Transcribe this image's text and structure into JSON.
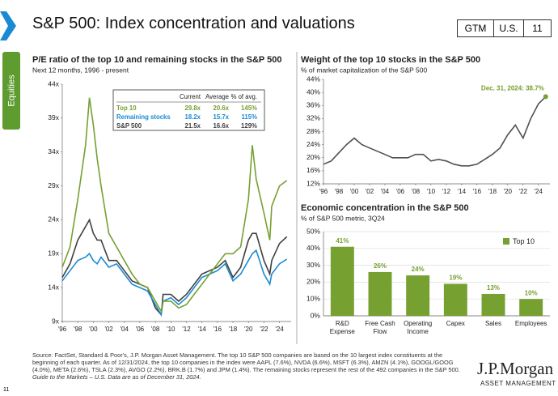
{
  "header": {
    "title": "S&P 500: Index concentration and valuations",
    "tags": [
      "GTM",
      "U.S.",
      "11"
    ],
    "side_tab": "Equities"
  },
  "chart_data": [
    {
      "type": "line",
      "title": "P/E ratio of the top 10 and remaining stocks in the S&P 500",
      "subtitle": "Next 12 months, 1996 - present",
      "x": [
        1996,
        1997,
        1998,
        1999,
        1999.5,
        2000,
        2000.5,
        2001,
        2002,
        2003,
        2004,
        2005,
        2006,
        2007,
        2008,
        2008.75,
        2009,
        2010,
        2011,
        2012,
        2013,
        2014,
        2015,
        2016,
        2017,
        2018,
        2019,
        2020,
        2020.5,
        2021,
        2022,
        2022.75,
        2023,
        2024,
        2024.95
      ],
      "series": [
        {
          "name": "Top 10",
          "color": "#76a030",
          "values": [
            17,
            20,
            27,
            35,
            42,
            38,
            33,
            29,
            22,
            20,
            18,
            16,
            14.5,
            14,
            12,
            10.5,
            12,
            12,
            11,
            11.5,
            13,
            14.5,
            16,
            17.5,
            19,
            19,
            20,
            27,
            35,
            30,
            25,
            21,
            26,
            29,
            29.8
          ]
        },
        {
          "name": "Remaining stocks",
          "color": "#1a8ad4",
          "values": [
            15,
            16.5,
            18,
            18.5,
            19,
            18,
            17.5,
            18.5,
            17,
            17.5,
            16,
            14.5,
            14,
            13.5,
            11.5,
            10,
            12,
            12.5,
            11.5,
            12.5,
            14,
            15.5,
            16,
            16.5,
            17.5,
            15,
            16,
            18,
            19,
            19.5,
            16,
            14.5,
            16,
            17.5,
            18.2
          ]
        },
        {
          "name": "S&P 500",
          "color": "#404040",
          "values": [
            15.5,
            17.5,
            21,
            23,
            24,
            22,
            21,
            21,
            18,
            18,
            16.5,
            15,
            14.5,
            14,
            11,
            10,
            13,
            13,
            12,
            13,
            14.5,
            16,
            16.5,
            17,
            18,
            15.5,
            17,
            21,
            22,
            22,
            18,
            16,
            18,
            20.5,
            21.5
          ]
        }
      ],
      "xlim": [
        1996,
        2025.5
      ],
      "xticks": [
        {
          "value": 1996,
          "label": "'96"
        },
        {
          "value": 1998,
          "label": "'98"
        },
        {
          "value": 2000,
          "label": "'00"
        },
        {
          "value": 2002,
          "label": "'02"
        },
        {
          "value": 2004,
          "label": "'04"
        },
        {
          "value": 2006,
          "label": "'06"
        },
        {
          "value": 2008,
          "label": "'08"
        },
        {
          "value": 2010,
          "label": "'10"
        },
        {
          "value": 2012,
          "label": "'12"
        },
        {
          "value": 2014,
          "label": "'14"
        },
        {
          "value": 2016,
          "label": "'16"
        },
        {
          "value": 2018,
          "label": "'18"
        },
        {
          "value": 2020,
          "label": "'20"
        },
        {
          "value": 2022,
          "label": "'22"
        },
        {
          "value": 2024,
          "label": "'24"
        }
      ],
      "ylim": [
        9,
        44
      ],
      "yticks": [
        {
          "value": 9,
          "label": "9x"
        },
        {
          "value": 14,
          "label": "14x"
        },
        {
          "value": 19,
          "label": "19x"
        },
        {
          "value": 24,
          "label": "24x"
        },
        {
          "value": 29,
          "label": "29x"
        },
        {
          "value": 34,
          "label": "34x"
        },
        {
          "value": 39,
          "label": "39x"
        },
        {
          "value": 44,
          "label": "44x"
        }
      ],
      "table": {
        "columns": [
          "Current",
          "Average",
          "% of avg."
        ],
        "rows": [
          {
            "label": "Top 10",
            "values": [
              "29.8x",
              "20.6x",
              "145%"
            ]
          },
          {
            "label": "Remaining stocks",
            "values": [
              "18.2x",
              "15.7x",
              "115%"
            ]
          },
          {
            "label": "S&P 500",
            "values": [
              "21.5x",
              "16.6x",
              "129%"
            ]
          }
        ]
      }
    },
    {
      "type": "line",
      "title": "Weight of the top 10 stocks in the S&P 500",
      "subtitle": "% of market capitalization of the S&P 500",
      "annotation": "Dec. 31, 2024: 38.7%",
      "x": [
        1996,
        1997,
        1998,
        1999,
        2000,
        2001,
        2002,
        2003,
        2004,
        2005,
        2006,
        2007,
        2008,
        2009,
        2010,
        2011,
        2012,
        2013,
        2014,
        2015,
        2016,
        2017,
        2018,
        2019,
        2020,
        2021,
        2022,
        2023,
        2024,
        2024.95
      ],
      "series": [
        {
          "name": "Weight of top 10",
          "color": "#505050",
          "values": [
            18,
            19,
            21.5,
            24,
            26,
            24,
            23,
            22,
            21,
            20,
            20,
            20,
            21,
            21,
            19,
            19.5,
            19,
            18,
            17.5,
            17.5,
            18,
            19.5,
            21,
            23,
            27,
            30,
            26,
            32,
            36.5,
            38.7
          ]
        }
      ],
      "marker_color": "#76a030",
      "xlim": [
        1996,
        2025.5
      ],
      "xticks": [
        {
          "value": 1996,
          "label": "'96"
        },
        {
          "value": 1998,
          "label": "'98"
        },
        {
          "value": 2000,
          "label": "'00"
        },
        {
          "value": 2002,
          "label": "'02"
        },
        {
          "value": 2004,
          "label": "'04"
        },
        {
          "value": 2006,
          "label": "'06"
        },
        {
          "value": 2008,
          "label": "'08"
        },
        {
          "value": 2010,
          "label": "'10"
        },
        {
          "value": 2012,
          "label": "'12"
        },
        {
          "value": 2014,
          "label": "'14"
        },
        {
          "value": 2016,
          "label": "'16"
        },
        {
          "value": 2018,
          "label": "'18"
        },
        {
          "value": 2020,
          "label": "'20"
        },
        {
          "value": 2022,
          "label": "'22"
        },
        {
          "value": 2024,
          "label": "'24"
        }
      ],
      "ylim": [
        12,
        44
      ],
      "yticks": [
        {
          "value": 12,
          "label": "12%"
        },
        {
          "value": 16,
          "label": "16%"
        },
        {
          "value": 20,
          "label": "20%"
        },
        {
          "value": 24,
          "label": "24%"
        },
        {
          "value": 28,
          "label": "28%"
        },
        {
          "value": 32,
          "label": "32%"
        },
        {
          "value": 36,
          "label": "36%"
        },
        {
          "value": 40,
          "label": "40%"
        },
        {
          "value": 44,
          "label": "44%"
        }
      ]
    },
    {
      "type": "bar",
      "title": "Economic concentration in the S&P 500",
      "subtitle": "% of S&P 500 metric, 3Q24",
      "categories": [
        "R&D Expense",
        "Free Cash Flow",
        "Operating Income",
        "Capex",
        "Sales",
        "Employees"
      ],
      "series": [
        {
          "name": "Top 10",
          "color": "#76a030",
          "values": [
            41,
            26,
            24,
            19,
            13,
            10
          ],
          "value_labels": [
            "41%",
            "26%",
            "24%",
            "19%",
            "13%",
            "10%"
          ]
        }
      ],
      "ylim": [
        0,
        50
      ],
      "yticks": [
        {
          "value": 0,
          "label": "0%"
        },
        {
          "value": 10,
          "label": "10%"
        },
        {
          "value": 20,
          "label": "20%"
        },
        {
          "value": 30,
          "label": "30%"
        },
        {
          "value": 40,
          "label": "40%"
        },
        {
          "value": 50,
          "label": "50%"
        }
      ],
      "grid": true,
      "legend": "upper right"
    }
  ],
  "footer": {
    "source": "Source: FactSet, Standard & Poor's, J.P. Morgan Asset Management. The top 10 S&P 500 companies are based on the 10 largest index constituents at the beginning of each quarter. As of 12/31/2024, the top 10 companies in the index were AAPL (7.6%), NVDA (6.6%), MSFT (6.3%), AMZN (4.1%), GOOGL/GOOG (4.0%), META (2.6%), TSLA (2.3%), AVGO (2.2%), BRK.B (1.7%) and JPM (1.4%). The remaining stocks represent the rest of the 492 companies in the S&P 500.",
    "note": "Guide to the Markets – U.S. Data are as of December 31, 2024.",
    "page": "11",
    "logo": "J.P.Morgan",
    "logo_sub": "ASSET MANAGEMENT"
  }
}
